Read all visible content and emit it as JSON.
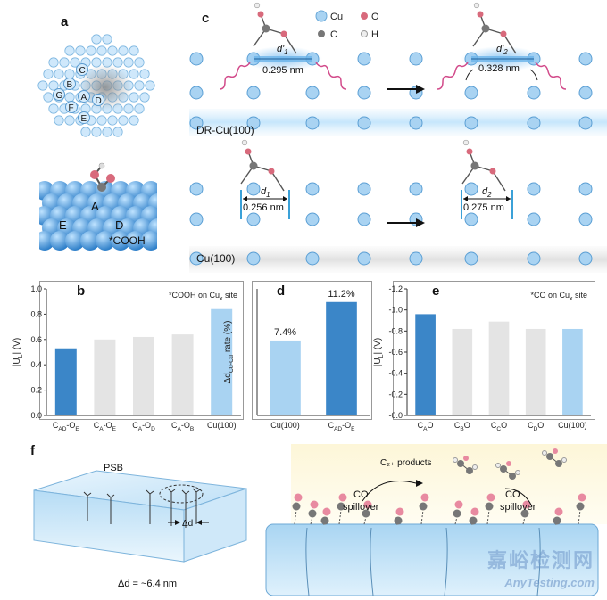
{
  "panels": {
    "a": {
      "letter": "a",
      "sites": [
        "A",
        "B",
        "C",
        "D",
        "E",
        "F",
        "G"
      ],
      "bottom_sites": [
        "A",
        "D",
        "E"
      ],
      "adsorbate": "*COOH"
    },
    "c": {
      "letter": "c",
      "legend": [
        "Cu",
        "O",
        "C",
        "H"
      ],
      "top_label": "DR-Cu(100)",
      "bottom_label": "Cu(100)",
      "d1p_label": "d'",
      "d1p_sub": "1",
      "d1p_value": "0.295 nm",
      "d2p_label": "d'",
      "d2p_sub": "2",
      "d2p_value": "0.328 nm",
      "d1_label": "d",
      "d1_sub": "1",
      "d1_value": "0.256 nm",
      "d2_label": "d",
      "d2_sub": "2",
      "d2_value": "0.275 nm"
    },
    "f": {
      "letter": "f",
      "psb": "PSB",
      "delta_d": "Δd",
      "delta_d_value": "Δd = ~6.4 nm",
      "products": "C₂₊ products",
      "co": "CO",
      "spillover": "spillover"
    }
  },
  "chart_data": [
    {
      "type": "bar",
      "panel": "b",
      "annotation": "*COOH on Cu",
      "annotation_sub": "x",
      "annotation_tail": " site",
      "ylabel": "|U",
      "ylabel_sub": "L",
      "ylabel_tail": "| (V)",
      "ylim": [
        0.0,
        1.0
      ],
      "yticks": [
        "0.0",
        "0.2",
        "0.4",
        "0.6",
        "0.8",
        "1.0"
      ],
      "categories": [
        {
          "main": "C",
          "sub": "AD",
          "mid": "-O",
          "sub2": "E"
        },
        {
          "main": "C",
          "sub": "A",
          "mid": "-O",
          "sub2": "E"
        },
        {
          "main": "C",
          "sub": "A",
          "mid": "-O",
          "sub2": "D"
        },
        {
          "main": "C",
          "sub": "A",
          "mid": "-O",
          "sub2": "B"
        },
        {
          "main": "Cu(100)",
          "sub": "",
          "mid": "",
          "sub2": ""
        }
      ],
      "values": [
        0.53,
        0.6,
        0.62,
        0.64,
        0.84
      ],
      "colors": [
        "#3b86c8",
        "#e4e4e4",
        "#e4e4e4",
        "#e4e4e4",
        "#a9d3f2"
      ]
    },
    {
      "type": "bar",
      "panel": "d",
      "ylabel": "Δd",
      "ylabel_sub": "Cu-Cu",
      "ylabel_tail": " rate (%)",
      "ylim": [
        0,
        12.5
      ],
      "categories": [
        {
          "main": "Cu(100)",
          "sub": "",
          "mid": "",
          "sub2": ""
        },
        {
          "main": "C",
          "sub": "AD",
          "mid": "-O",
          "sub2": "E"
        }
      ],
      "values": [
        7.4,
        11.2
      ],
      "data_labels": [
        "7.4%",
        "11.2%"
      ],
      "colors": [
        "#a9d3f2",
        "#3b86c8"
      ]
    },
    {
      "type": "bar",
      "panel": "e",
      "annotation": "*CO on Cu",
      "annotation_sub": "x",
      "annotation_tail": " site",
      "ylabel": "|U",
      "ylabel_sub": "L",
      "ylabel_tail": "| (V)",
      "ylim": [
        0.0,
        -1.2
      ],
      "yticks": [
        "-1.2",
        "-1.0",
        "-0.8",
        "-0.6",
        "-0.4",
        "-0.2",
        "-0.0"
      ],
      "categories": [
        {
          "main": "C",
          "sub": "A",
          "mid": "O",
          "sub2": ""
        },
        {
          "main": "C",
          "sub": "B",
          "mid": "O",
          "sub2": ""
        },
        {
          "main": "C",
          "sub": "C",
          "mid": "O",
          "sub2": ""
        },
        {
          "main": "C",
          "sub": "D",
          "mid": "O",
          "sub2": ""
        },
        {
          "main": "Cu(100)",
          "sub": "",
          "mid": "",
          "sub2": ""
        }
      ],
      "values": [
        -0.96,
        -0.82,
        -0.89,
        -0.82,
        -0.82
      ],
      "colors": [
        "#3b86c8",
        "#e4e4e4",
        "#e4e4e4",
        "#e4e4e4",
        "#a9d3f2"
      ]
    }
  ],
  "watermark": {
    "cn": "嘉峪检测网",
    "en": "AnyTesting.com"
  }
}
